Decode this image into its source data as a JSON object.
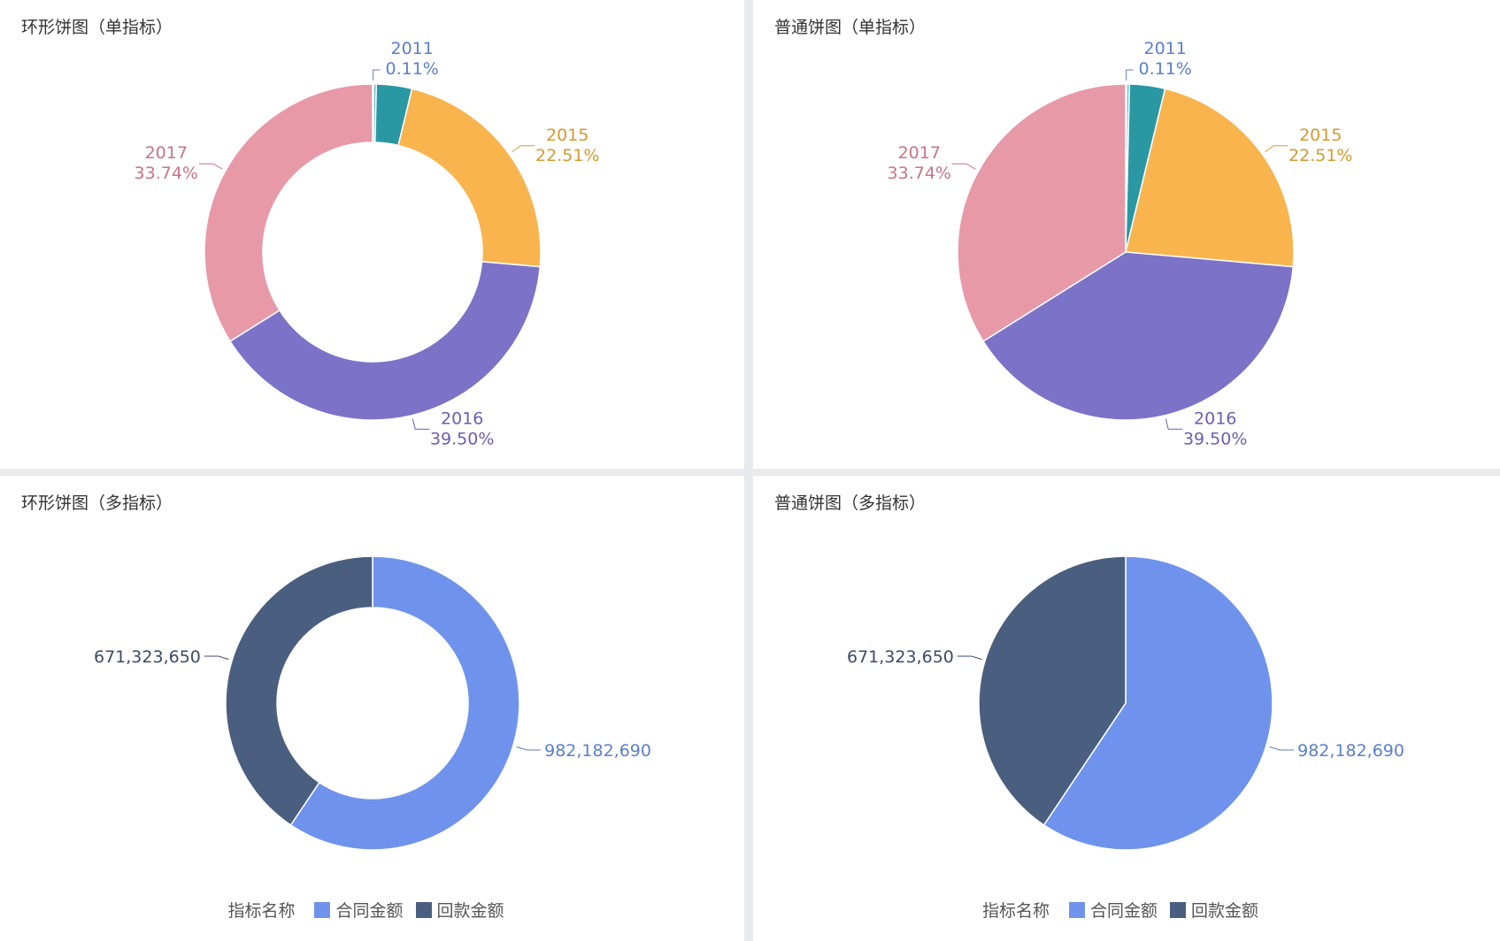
{
  "panels": {
    "p1": {
      "title": "环形饼图（单指标）"
    },
    "p2": {
      "title": "普通饼图（单指标）"
    },
    "p3": {
      "title": "环形饼图（多指标）"
    },
    "p4": {
      "title": "普通饼图（多指标）"
    }
  },
  "legend": {
    "title": "指标名称",
    "items": [
      "合同金额",
      "回款金额"
    ]
  },
  "chart_data": [
    {
      "type": "pie",
      "variant": "donut",
      "title": "环形饼图（单指标）",
      "slices": [
        {
          "label": "2011",
          "percent": 0.11,
          "percent_label": "0.11%",
          "color": "#3bbfbf"
        },
        {
          "label": "",
          "percent": 0.25,
          "percent_label": "",
          "color": "#5fb7c4"
        },
        {
          "label": "",
          "percent": 3.39,
          "percent_label": "",
          "color": "#2a98a3"
        },
        {
          "label": "2015",
          "percent": 22.51,
          "percent_label": "22.51%",
          "color": "#f9b44e"
        },
        {
          "label": "2016",
          "percent": 39.5,
          "percent_label": "39.50%",
          "color": "#7c72c8"
        },
        {
          "label": "2017",
          "percent": 33.74,
          "percent_label": "33.74%",
          "color": "#e899a8"
        }
      ]
    },
    {
      "type": "pie",
      "variant": "pie",
      "title": "普通饼图（单指标）",
      "slices": [
        {
          "label": "2011",
          "percent": 0.11,
          "percent_label": "0.11%",
          "color": "#3bbfbf"
        },
        {
          "label": "",
          "percent": 0.25,
          "percent_label": "",
          "color": "#5fb7c4"
        },
        {
          "label": "",
          "percent": 3.39,
          "percent_label": "",
          "color": "#2a98a3"
        },
        {
          "label": "2015",
          "percent": 22.51,
          "percent_label": "22.51%",
          "color": "#f9b44e"
        },
        {
          "label": "2016",
          "percent": 39.5,
          "percent_label": "39.50%",
          "color": "#7c72c8"
        },
        {
          "label": "2017",
          "percent": 33.74,
          "percent_label": "33.74%",
          "color": "#e899a8"
        }
      ]
    },
    {
      "type": "pie",
      "variant": "donut",
      "title": "环形饼图（多指标）",
      "legend_title": "指标名称",
      "slices": [
        {
          "label": "合同金额",
          "value": 982182690,
          "value_label": "982,182,690",
          "color": "#6f93ed"
        },
        {
          "label": "回款金额",
          "value": 671323650,
          "value_label": "671,323,650",
          "color": "#4a5e80"
        }
      ]
    },
    {
      "type": "pie",
      "variant": "pie",
      "title": "普通饼图（多指标）",
      "legend_title": "指标名称",
      "slices": [
        {
          "label": "合同金额",
          "value": 982182690,
          "value_label": "982,182,690",
          "color": "#6f93ed"
        },
        {
          "label": "回款金额",
          "value": 671323650,
          "value_label": "671,323,650",
          "color": "#4a5e80"
        }
      ]
    }
  ],
  "label_colors": {
    "2011": "#5b7fc9",
    "2015": "#d59a2e",
    "2016": "#6a5fb0",
    "2017": "#c97485",
    "合同金额": "#5b7fc9",
    "回款金额": "#3c4a66"
  }
}
